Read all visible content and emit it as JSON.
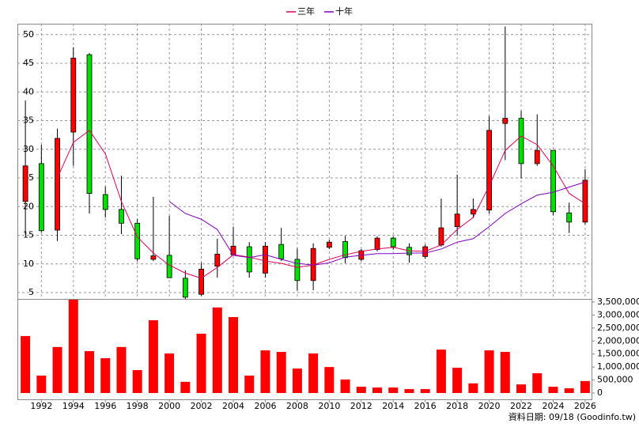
{
  "chart_data": [
    {
      "type": "candlestick",
      "legend_position": "top",
      "x": [
        1991,
        1992,
        1993,
        1994,
        1995,
        1996,
        1997,
        1998,
        1999,
        2000,
        2001,
        2002,
        2003,
        2004,
        2005,
        2006,
        2007,
        2008,
        2009,
        2010,
        2011,
        2012,
        2013,
        2014,
        2015,
        2016,
        2017,
        2018,
        2019,
        2020,
        2021,
        2022,
        2023,
        2024,
        2025,
        2026
      ],
      "open": [
        20.9,
        27.5,
        15.9,
        33.0,
        46.5,
        22.1,
        19.5,
        17.1,
        10.8,
        11.5,
        7.5,
        4.7,
        9.6,
        11.6,
        13.0,
        8.4,
        13.4,
        10.8,
        7.1,
        12.9,
        13.9,
        10.8,
        12.5,
        14.5,
        12.9,
        11.3,
        13.3,
        16.5,
        18.7,
        19.4,
        34.5,
        35.4,
        27.5,
        29.8,
        18.9,
        17.3
      ],
      "high": [
        38.5,
        30.8,
        33.6,
        47.8,
        46.8,
        23.5,
        25.4,
        17.8,
        21.7,
        18.4,
        8.9,
        10.2,
        14.4,
        16.5,
        13.8,
        13.8,
        16.3,
        12.7,
        13.6,
        14.2,
        14.9,
        12.6,
        14.8,
        14.8,
        13.6,
        13.4,
        21.4,
        25.6,
        21.4,
        35.8,
        51.4,
        36.7,
        36.1,
        29.8,
        20.7,
        26.5
      ],
      "low": [
        15.1,
        15.5,
        14.0,
        27.1,
        18.8,
        18.1,
        15.2,
        10.5,
        10.5,
        7.6,
        3.9,
        4.4,
        7.6,
        11.5,
        7.6,
        7.6,
        10.5,
        5.4,
        5.4,
        12.6,
        10.1,
        10.5,
        12.2,
        12.5,
        10.2,
        10.9,
        13.0,
        14.9,
        18.0,
        18.8,
        28.1,
        24.9,
        27.1,
        18.5,
        15.4,
        16.9
      ],
      "close": [
        27.1,
        15.8,
        31.9,
        45.9,
        22.3,
        19.5,
        17.1,
        10.9,
        11.4,
        7.6,
        4.2,
        9.1,
        11.7,
        13.1,
        8.6,
        13.1,
        10.9,
        7.1,
        12.7,
        13.8,
        11.1,
        12.3,
        14.5,
        13.0,
        11.6,
        13.0,
        16.3,
        18.7,
        19.5,
        33.3,
        35.4,
        27.5,
        29.8,
        19.1,
        17.3,
        24.6
      ],
      "up_color": "#ff0000",
      "down_color": "#00e000",
      "series": [
        {
          "name": "三年",
          "color": "#e0005a",
          "values": [
            null,
            null,
            25.0,
            31.2,
            33.3,
            29.2,
            20.9,
            14.7,
            11.9,
            9.8,
            8.4,
            7.5,
            9.4,
            11.6,
            11.2,
            10.5,
            10.1,
            9.4,
            9.8,
            10.8,
            11.6,
            12.2,
            12.6,
            12.9,
            12.3,
            12.2,
            13.3,
            16.0,
            18.1,
            23.6,
            29.8,
            32.3,
            30.8,
            27.1,
            22.3,
            20.5
          ]
        },
        {
          "name": "十年",
          "color": "#8000c0",
          "values": [
            null,
            null,
            null,
            null,
            null,
            null,
            null,
            null,
            null,
            20.9,
            18.8,
            17.8,
            16.0,
            11.5,
            11.1,
            11.6,
            10.8,
            10.1,
            9.8,
            10.2,
            11.2,
            11.5,
            11.8,
            11.8,
            11.9,
            11.9,
            12.6,
            13.8,
            14.4,
            16.5,
            18.8,
            20.5,
            22.0,
            22.5,
            23.4,
            24.3
          ]
        }
      ],
      "xlim": [
        1990.5,
        2026.4
      ],
      "xticks": [
        1992,
        1994,
        1996,
        1998,
        2000,
        2002,
        2004,
        2006,
        2008,
        2010,
        2012,
        2014,
        2016,
        2018,
        2020,
        2022,
        2024,
        2026
      ],
      "ylim": [
        3.9,
        51.9
      ],
      "yticks": [
        5,
        10,
        15,
        20,
        25,
        30,
        35,
        40,
        45,
        50
      ],
      "grid": true
    },
    {
      "type": "bar",
      "x": [
        1991,
        1992,
        1993,
        1994,
        1995,
        1996,
        1997,
        1998,
        1999,
        2000,
        2001,
        2002,
        2003,
        2004,
        2005,
        2006,
        2007,
        2008,
        2009,
        2010,
        2011,
        2012,
        2013,
        2014,
        2015,
        2016,
        2017,
        2018,
        2019,
        2020,
        2021,
        2022,
        2023,
        2024,
        2025,
        2026
      ],
      "values": [
        2190000,
        670000,
        1770000,
        3590000,
        1610000,
        1340000,
        1770000,
        880000,
        2800000,
        1520000,
        430000,
        2280000,
        3290000,
        2920000,
        670000,
        1640000,
        1580000,
        940000,
        1520000,
        1000000,
        520000,
        240000,
        210000,
        210000,
        150000,
        150000,
        1670000,
        970000,
        370000,
        1640000,
        1580000,
        330000,
        760000,
        240000,
        180000,
        460000
      ],
      "color": "#ff0000",
      "xlim": [
        1990.5,
        2026.4
      ],
      "ylim": [
        0,
        3620000
      ],
      "yticks": [
        {
          "value": 0,
          "label": "0"
        },
        {
          "value": 500000,
          "label": "500,000"
        },
        {
          "value": 1000000,
          "label": "1,000,000"
        },
        {
          "value": 1500000,
          "label": "1,500,000"
        },
        {
          "value": 2000000,
          "label": "2,000,000"
        },
        {
          "value": 2500000,
          "label": "2,500,000"
        },
        {
          "value": 3000000,
          "label": "3,000,000"
        },
        {
          "value": 3500000,
          "label": "3,500,000"
        }
      ]
    }
  ],
  "footer": "資料日期: 09/18 (Goodinfo.tw)"
}
